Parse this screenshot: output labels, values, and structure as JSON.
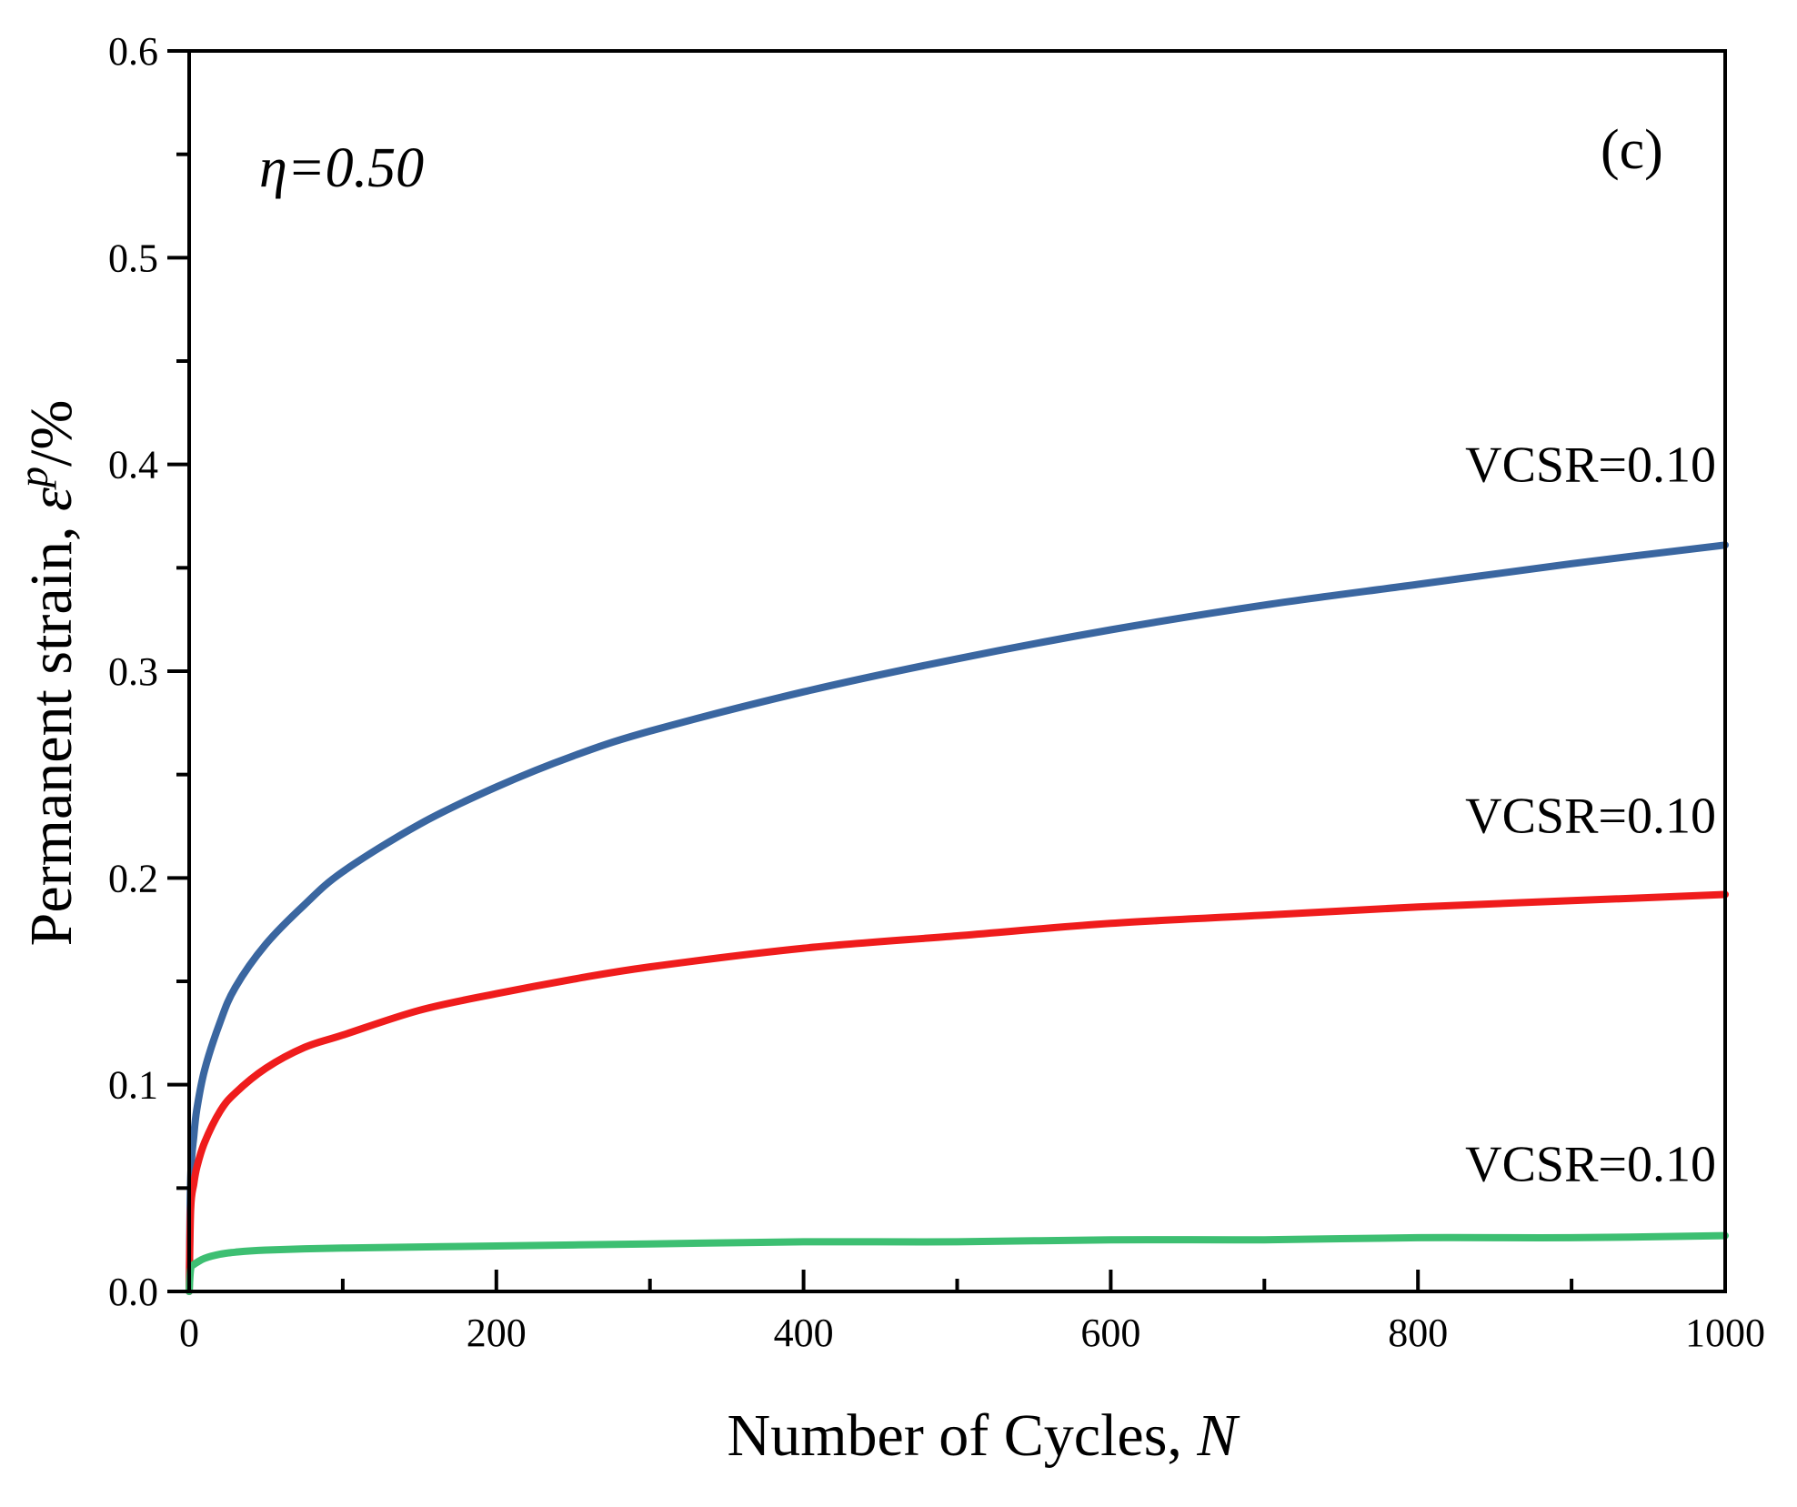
{
  "chart_data": {
    "type": "line",
    "title": "",
    "xlabel": "Number of Cycles, ",
    "xlabel_var": "N",
    "ylabel": "Permanent strain, ",
    "ylabel_symbol": "ε",
    "ylabel_sup": "p",
    "ylabel_unit": "/%",
    "xlim": [
      0,
      1000
    ],
    "ylim": [
      0,
      0.6
    ],
    "xticks": [
      0,
      200,
      400,
      600,
      800,
      1000
    ],
    "xtick_labels": [
      "0",
      "200",
      "400",
      "600",
      "800",
      "1000"
    ],
    "yticks": [
      0,
      0.1,
      0.2,
      0.3,
      0.4,
      0.5,
      0.6
    ],
    "ytick_labels": [
      "0.0",
      "0.1",
      "0.2",
      "0.3",
      "0.4",
      "0.5",
      "0.6"
    ],
    "grid": false,
    "annotations": {
      "eta": "η=0.50",
      "panel": "(c)"
    },
    "series": [
      {
        "name": "VCSR=0.10",
        "color": "#3a66a0",
        "x": [
          0,
          1,
          3,
          5,
          10,
          20,
          30,
          50,
          75,
          100,
          150,
          200,
          250,
          300,
          400,
          500,
          600,
          700,
          800,
          900,
          1000
        ],
        "y": [
          0,
          0.055,
          0.075,
          0.088,
          0.107,
          0.13,
          0.147,
          0.168,
          0.187,
          0.203,
          0.226,
          0.244,
          0.259,
          0.271,
          0.29,
          0.306,
          0.32,
          0.332,
          0.342,
          0.352,
          0.361
        ]
      },
      {
        "name": "VCSR=0.10",
        "color": "#ef1c1c",
        "x": [
          0,
          1,
          3,
          5,
          10,
          20,
          30,
          50,
          75,
          100,
          150,
          200,
          250,
          300,
          400,
          500,
          600,
          700,
          800,
          900,
          1000
        ],
        "y": [
          0,
          0.04,
          0.052,
          0.06,
          0.072,
          0.087,
          0.096,
          0.108,
          0.118,
          0.124,
          0.136,
          0.144,
          0.151,
          0.157,
          0.166,
          0.172,
          0.178,
          0.182,
          0.186,
          0.189,
          0.192
        ]
      },
      {
        "name": "VCSR=0.10",
        "color": "#3dbf72",
        "x": [
          0,
          1,
          3,
          5,
          10,
          20,
          30,
          50,
          100,
          200,
          300,
          400,
          500,
          600,
          700,
          800,
          900,
          1000
        ],
        "y": [
          0,
          0.011,
          0.013,
          0.014,
          0.016,
          0.018,
          0.019,
          0.02,
          0.021,
          0.022,
          0.023,
          0.024,
          0.024,
          0.025,
          0.025,
          0.026,
          0.026,
          0.027
        ]
      }
    ]
  }
}
